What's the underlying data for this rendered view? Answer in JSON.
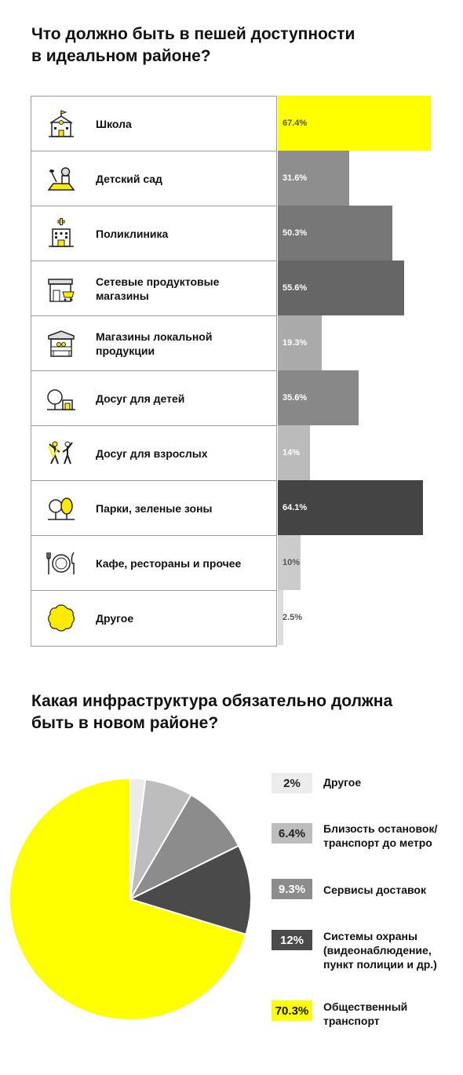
{
  "titles": {
    "bar": "Что должно быть в пешей доступности\nв идеальном районе?",
    "pie": "Какая инфраструктура обязательно должна\nбыть в новом районе?"
  },
  "chart_data": [
    {
      "type": "bar",
      "orientation": "horizontal",
      "title": "Что должно быть в пешей доступности в идеальном районе?",
      "unit": "%",
      "categories": [
        "Школа",
        "Детский сад",
        "Поликлиника",
        "Сетевые продуктовые\nмагазины",
        "Магазины локальной\nпродукции",
        "Досуг для детей",
        "Досуг для взрослых",
        "Парки, зеленые зоны",
        "Кафе, рестораны и прочее",
        "Другое"
      ],
      "values": [
        67.4,
        31.6,
        50.3,
        55.6,
        19.3,
        35.6,
        14,
        64.1,
        10,
        2.5
      ],
      "value_labels": [
        "67.4%",
        "31.6%",
        "50.3%",
        "55.6%",
        "19.3%",
        "35.6%",
        "14%",
        "64.1%",
        "10%",
        "2.5%"
      ],
      "colors": [
        "#ffff00",
        "#8e8e8e",
        "#777777",
        "#666666",
        "#aaaaaa",
        "#888888",
        "#bbbbbb",
        "#444444",
        "#cccccc",
        "#dddddd"
      ],
      "icons": [
        "school-icon",
        "kindergarten-icon",
        "clinic-icon",
        "grocery-store-icon",
        "local-market-icon",
        "kids-leisure-icon",
        "adult-leisure-icon",
        "park-icon",
        "restaurant-icon",
        "other-icon"
      ],
      "xlim": [
        0,
        80
      ]
    },
    {
      "type": "pie",
      "title": "Какая инфраструктура обязательно должна быть в новом районе?",
      "labels": [
        "Другое",
        "Близость остановок/\nтранспорт до метро",
        "Сервисы доставок",
        "Системы охраны\n(видеонаблюдение,\nпункт полиции и др.)",
        "Общественный\nтранспорт"
      ],
      "values": [
        2,
        6.4,
        9.3,
        12,
        70.3
      ],
      "value_labels": [
        "2%",
        "6.4%",
        "9.3%",
        "12%",
        "70.3%"
      ],
      "colors": [
        "#ececec",
        "#bdbdbd",
        "#8c8c8c",
        "#4a4a4a",
        "#ffff00"
      ],
      "label_colors": [
        "#222222",
        "#222222",
        "#ffffff",
        "#ffffff",
        "#111111"
      ],
      "legend": "right"
    }
  ]
}
